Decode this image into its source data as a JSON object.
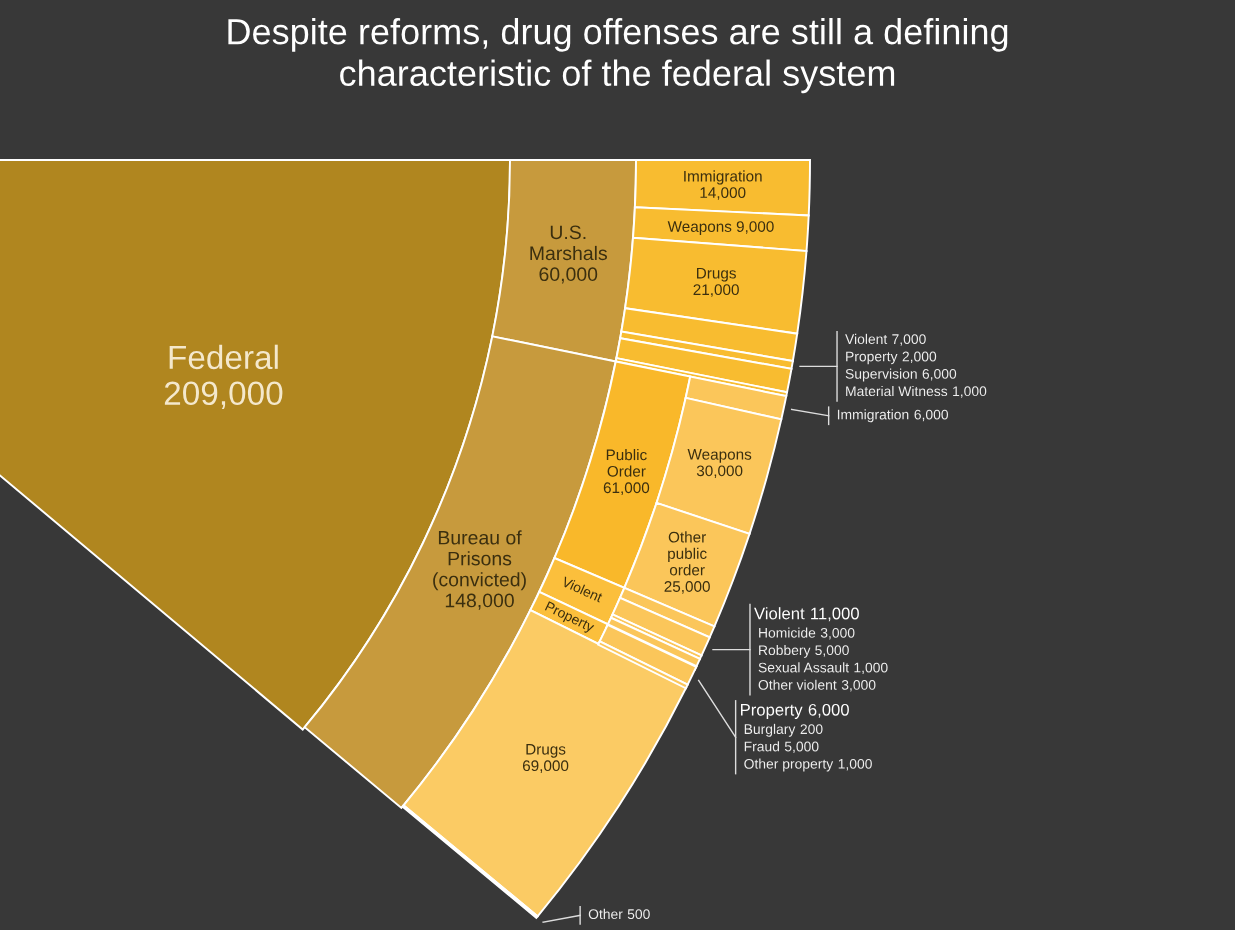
{
  "chart_data": {
    "type": "other",
    "title": "Despite reforms, drug offenses are still a defining characteristic of the federal system",
    "value_labels": [
      "209,000",
      "60,000",
      "14,000",
      "9,000",
      "21,000",
      "7,000",
      "2,000",
      "6,000",
      "1,000",
      "148,000",
      "61,000",
      "6,000",
      "30,000",
      "25,000",
      "11,000",
      "3,000",
      "5,000",
      "1,000",
      "3,000",
      "6,000",
      "200",
      "5,000",
      "1,000",
      "69,000",
      "500"
    ],
    "categories": [
      "Federal",
      "U.S. Marshals",
      "Immigration",
      "Weapons",
      "Drugs",
      "Violent",
      "Property",
      "Supervision",
      "Material Witness",
      "Bureau of Prisons (convicted)",
      "Public Order",
      "Immigration",
      "Weapons",
      "Other public order",
      "Violent",
      "Homicide",
      "Robbery",
      "Sexual Assault",
      "Other violent",
      "Property",
      "Burglary",
      "Fraud",
      "Other property",
      "Drugs",
      "Other"
    ],
    "values": [
      209000,
      60000,
      14000,
      9000,
      21000,
      7000,
      2000,
      6000,
      1000,
      148000,
      61000,
      6000,
      30000,
      25000,
      11000,
      3000,
      5000,
      1000,
      3000,
      6000,
      200,
      5000,
      1000,
      69000,
      500
    ],
    "colors": [
      "#b0861f",
      "#c79a3d",
      "#f8bc30",
      "#f8bc30",
      "#f8bc30",
      "#f8bc30",
      "#f8bc30",
      "#f8bc30",
      "#f8bc30",
      "#c79a3d",
      "#f9b82a",
      "#fbc65a",
      "#fbc65a",
      "#fbc65a",
      "#fbbf3c",
      "#fbc65a",
      "#fbc65a",
      "#fbc65a",
      "#fbc65a",
      "#fbbf3c",
      "#fbc65a",
      "#fbc65a",
      "#fbc65a",
      "#fbcb64",
      "#fbcb64"
    ]
  }
}
